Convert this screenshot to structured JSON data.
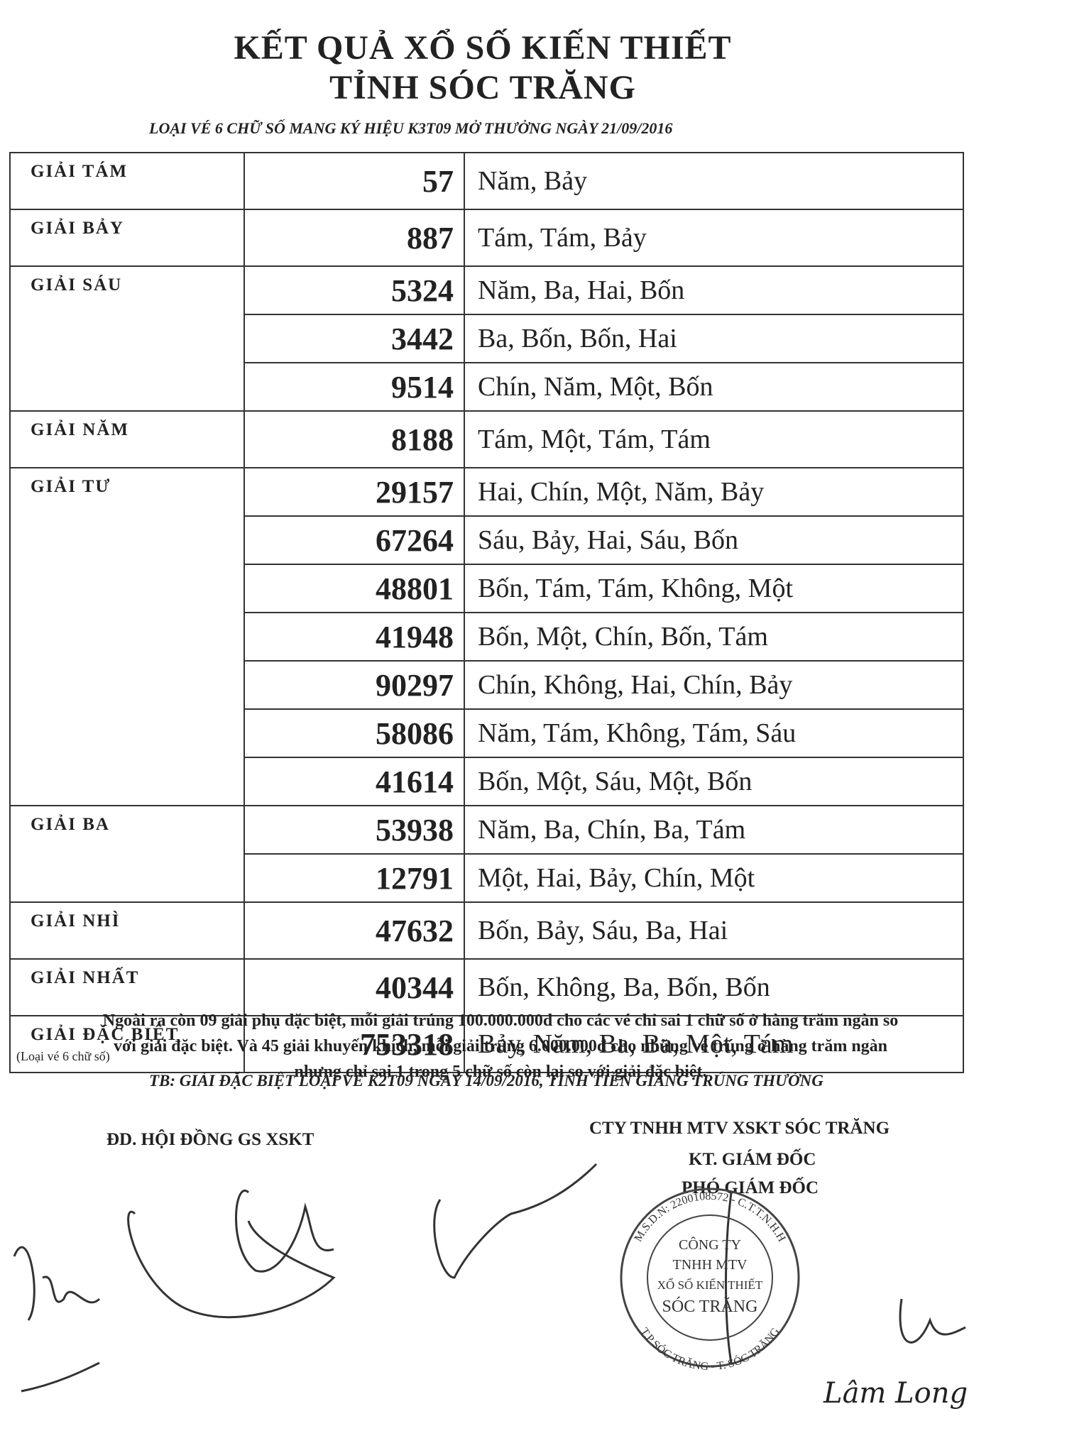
{
  "header": {
    "title_line1": "KẾT QUẢ XỔ SỐ KIẾN THIẾT",
    "title_line2": "TỈNH SÓC TRĂNG",
    "subtitle": "LOẠI VÉ 6 CHỮ SỐ MANG KÝ HIỆU K3T09 MỞ THƯỞNG NGÀY 21/09/2016"
  },
  "table": {
    "groups": [
      {
        "prize": "GIẢI TÁM",
        "results": [
          {
            "number": "57",
            "words": "Năm, Bảy"
          }
        ]
      },
      {
        "prize": "GIẢI BẢY",
        "results": [
          {
            "number": "887",
            "words": "Tám, Tám, Bảy"
          }
        ]
      },
      {
        "prize": "GIẢI SÁU",
        "results": [
          {
            "number": "5324",
            "words": "Năm, Ba, Hai, Bốn"
          },
          {
            "number": "3442",
            "words": "Ba, Bốn, Bốn, Hai"
          },
          {
            "number": "9514",
            "words": "Chín, Năm, Một, Bốn"
          }
        ]
      },
      {
        "prize": "GIẢI NĂM",
        "results": [
          {
            "number": "8188",
            "words": "Tám, Một, Tám, Tám"
          }
        ]
      },
      {
        "prize": "GIẢI TƯ",
        "results": [
          {
            "number": "29157",
            "words": "Hai, Chín, Một, Năm, Bảy"
          },
          {
            "number": "67264",
            "words": "Sáu, Bảy, Hai, Sáu, Bốn"
          },
          {
            "number": "48801",
            "words": "Bốn, Tám, Tám, Không, Một"
          },
          {
            "number": "41948",
            "words": "Bốn, Một, Chín, Bốn, Tám"
          },
          {
            "number": "90297",
            "words": "Chín, Không, Hai, Chín, Bảy"
          },
          {
            "number": "58086",
            "words": "Năm, Tám, Không, Tám, Sáu"
          },
          {
            "number": "41614",
            "words": "Bốn, Một, Sáu, Một, Bốn"
          }
        ]
      },
      {
        "prize": "GIẢI BA",
        "results": [
          {
            "number": "53938",
            "words": "Năm, Ba, Chín, Ba, Tám"
          },
          {
            "number": "12791",
            "words": "Một, Hai, Bảy, Chín, Một"
          }
        ]
      },
      {
        "prize": "GIẢI NHÌ",
        "results": [
          {
            "number": "47632",
            "words": "Bốn, Bảy, Sáu, Ba, Hai"
          }
        ]
      },
      {
        "prize": "GIẢI NHẤT",
        "results": [
          {
            "number": "40344",
            "words": "Bốn, Không, Ba, Bốn, Bốn"
          }
        ]
      },
      {
        "prize": "GIẢI ĐẶC BIỆT",
        "note": "(Loại vé 6 chữ số)",
        "results": [
          {
            "number": "753318",
            "words": "Bảy, Năm, Ba, Ba, Một, Tám"
          }
        ]
      }
    ]
  },
  "notes": {
    "paragraph": "Ngoài ra còn 09 giải phụ đặc biệt, mỗi giải trúng 100.000.000đ cho các vé chỉ sai 1 chữ số ở hàng trăm ngàn so với giải đặc biệt. Và 45 giải khuyến khích, mỗi giải trúng 6.000.000đ cho những vé trúng ở hàng trăm ngàn nhưng chỉ sai 1 trong 5 chữ số còn lại so với giải đặc biệt.",
    "tb": "TB: GIẢI ĐẶC BIỆT LOẠI VÉ K2T09 NGÀY 14/09/2016, TỈNH TIỀN GIANG TRÚNG THƯỞNG"
  },
  "signatures": {
    "left": "ĐD. HỘI ĐỒNG GS XSKT",
    "right_company": "CTY TNHH MTV XSKT SÓC TRĂNG",
    "right_role1": "KT. GIÁM ĐỐC",
    "right_role2": "PHÓ GIÁM ĐỐC",
    "signer_name": "Lâm Long"
  },
  "stamp": {
    "line1": "CÔNG TY",
    "line2": "TNHH MTV",
    "line3": "XỔ SỐ KIẾN THIẾT",
    "line4": "SÓC TRĂNG",
    "ring_top": "M.S.D.N: 2200108572 - C.T.T.N.H.H",
    "ring_bottom": "T.P SÓC TRĂNG - T. SÓC TRĂNG"
  }
}
